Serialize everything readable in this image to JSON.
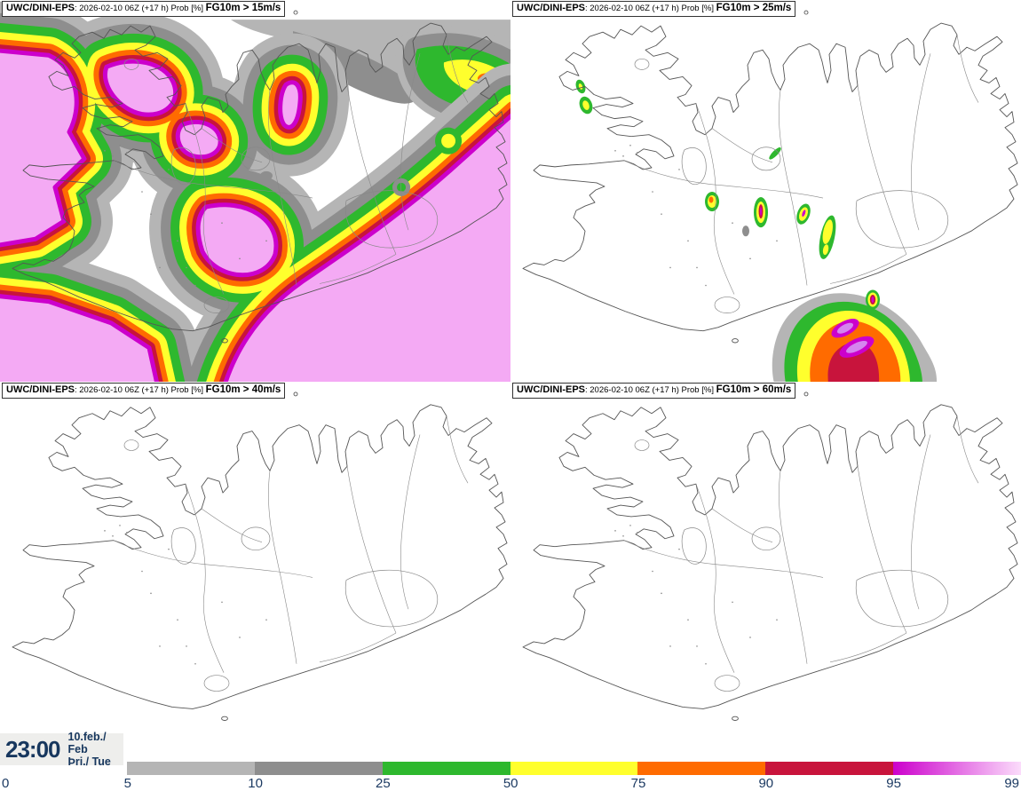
{
  "panels": [
    {
      "source": "UWC/DINI-EPS",
      "meta": ": 2026-02-10 06Z (+17 h) Prob [%] ",
      "param": "FG10m > 15m/s"
    },
    {
      "source": "UWC/DINI-EPS",
      "meta": ": 2026-02-10 06Z (+17 h) Prob [%] ",
      "param": "FG10m > 25m/s"
    },
    {
      "source": "UWC/DINI-EPS",
      "meta": ": 2026-02-10 06Z (+17 h) Prob [%] ",
      "param": "FG10m > 40m/s"
    },
    {
      "source": "UWC/DINI-EPS",
      "meta": ": 2026-02-10 06Z (+17 h) Prob [%] ",
      "param": "FG10m > 60m/s"
    }
  ],
  "clock": {
    "time": "23:00",
    "date": "10.feb./ Feb",
    "day": "Þri./ Tue"
  },
  "colorbar": {
    "ticks": [
      "0",
      "5",
      "10",
      "25",
      "50",
      "75",
      "90",
      "95",
      "99"
    ],
    "segments": [
      {
        "range": "5-10",
        "color": "#b5b5b5"
      },
      {
        "range": "10-25",
        "color": "#8e8e8e"
      },
      {
        "range": "25-50",
        "color": "#2eb82e"
      },
      {
        "range": "50-75",
        "color": "#ffff2d"
      },
      {
        "range": "75-90",
        "color": "#ff6b00"
      },
      {
        "range": "90-95",
        "color": "#c8143c"
      },
      {
        "range": "95-99",
        "color": "#cc00cc",
        "gradient_to": "#fbdcfb"
      }
    ]
  },
  "map_colors": {
    "coastline": "#555555",
    "inner_lines": "#888888",
    "high_prob_fill": "#f4aaf4",
    "extreme_core": "#d584ef",
    "text_navy": "#1c3a62"
  },
  "map": {
    "name": "iceland-coastline"
  }
}
